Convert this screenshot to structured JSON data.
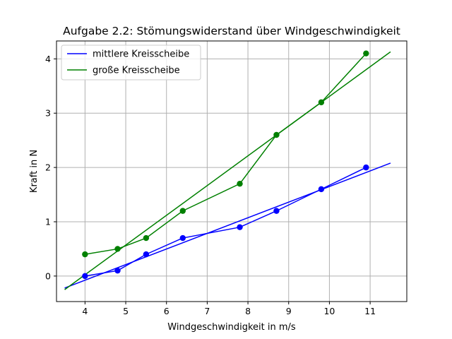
{
  "chart_data": {
    "type": "line",
    "title": "Aufgabe 2.2: Stömungswiderstand über Windgeschwindigkeit",
    "xlabel": "Windgeschwindigkeit in m/s",
    "ylabel": "Kraft in N",
    "xlim": [
      3.3,
      11.9
    ],
    "ylim": [
      -0.47,
      4.33
    ],
    "xticks": [
      4,
      5,
      6,
      7,
      8,
      9,
      10,
      11
    ],
    "yticks": [
      0,
      1,
      2,
      3,
      4
    ],
    "grid": true,
    "legend_position": "top-left",
    "series": [
      {
        "name": "mittlere Kreisscheibe",
        "color": "#0000ff",
        "points": {
          "x": [
            4.0,
            4.8,
            5.5,
            6.4,
            7.8,
            8.7,
            9.8,
            10.9
          ],
          "y": [
            0.0,
            0.1,
            0.4,
            0.7,
            0.9,
            1.2,
            1.6,
            2.0
          ]
        },
        "fit": {
          "x": [
            3.5,
            11.5
          ],
          "y": [
            -0.22,
            2.08
          ]
        }
      },
      {
        "name": "große Kreisscheibe",
        "color": "#008000",
        "points": {
          "x": [
            4.0,
            4.8,
            5.5,
            6.4,
            7.8,
            8.7,
            9.8,
            10.9
          ],
          "y": [
            0.4,
            0.5,
            0.7,
            1.2,
            1.7,
            2.6,
            3.2,
            4.1
          ]
        },
        "fit": {
          "x": [
            3.5,
            11.5
          ],
          "y": [
            -0.25,
            4.13
          ]
        }
      }
    ]
  }
}
